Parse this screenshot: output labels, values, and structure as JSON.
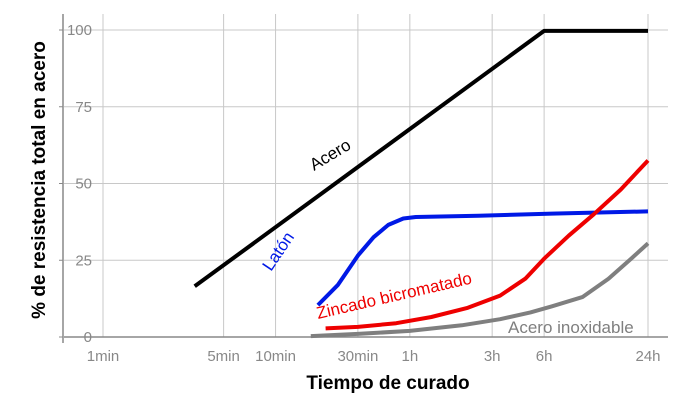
{
  "chart_data": {
    "type": "line",
    "xlabel": "Tiempo de curado",
    "ylabel": "% de resistencia total en acero",
    "x_scale": "log",
    "x_unit": "minutes",
    "xlim": [
      1,
      1440
    ],
    "ylim": [
      0,
      100
    ],
    "grid": true,
    "legend": "none (series labelled inline)",
    "x_ticks": [
      {
        "value": 1,
        "label": "1min"
      },
      {
        "value": 5,
        "label": "5min"
      },
      {
        "value": 10,
        "label": "10min"
      },
      {
        "value": 30,
        "label": "30min"
      },
      {
        "value": 60,
        "label": "1h"
      },
      {
        "value": 180,
        "label": "3h"
      },
      {
        "value": 360,
        "label": "6h"
      },
      {
        "value": 1440,
        "label": "24h"
      }
    ],
    "y_ticks": [
      {
        "value": 0,
        "label": "0"
      },
      {
        "value": 25,
        "label": "25"
      },
      {
        "value": 50,
        "label": "50"
      },
      {
        "value": 75,
        "label": "75"
      },
      {
        "value": 100,
        "label": "100"
      }
    ],
    "series": [
      {
        "name": "Acero",
        "color": "#000000",
        "x": [
          3.4,
          360,
          1440
        ],
        "y": [
          16.5,
          99.7,
          99.7
        ]
      },
      {
        "name": "Latón",
        "color": "#0019e6",
        "x": [
          17.6,
          23,
          30,
          37,
          45,
          55,
          65,
          150,
          400,
          1440
        ],
        "y": [
          10.4,
          17,
          26.5,
          32.5,
          36.5,
          38.6,
          39.1,
          39.5,
          40.2,
          40.9
        ]
      },
      {
        "name": "Zincado bicromatado",
        "color": "#ee0000",
        "x": [
          19.5,
          30,
          50,
          80,
          130,
          200,
          280,
          360,
          500,
          700,
          1000,
          1440
        ],
        "y": [
          2.8,
          3.3,
          4.5,
          6.5,
          9.5,
          13.5,
          19,
          25.5,
          33,
          40,
          48,
          57.5
        ]
      },
      {
        "name": "Acero inoxidable",
        "color": "#7f7f7f",
        "x": [
          16,
          30,
          60,
          120,
          200,
          300,
          400,
          600,
          850,
          1150,
          1440
        ],
        "y": [
          0.3,
          1,
          2,
          3.8,
          5.8,
          8,
          10,
          13,
          19,
          25.5,
          30.5
        ]
      }
    ]
  },
  "labels": {
    "acero": "Acero",
    "laton": "Latón",
    "zincado": "Zincado bicromatado",
    "inoxidable": "Acero inoxidable"
  }
}
